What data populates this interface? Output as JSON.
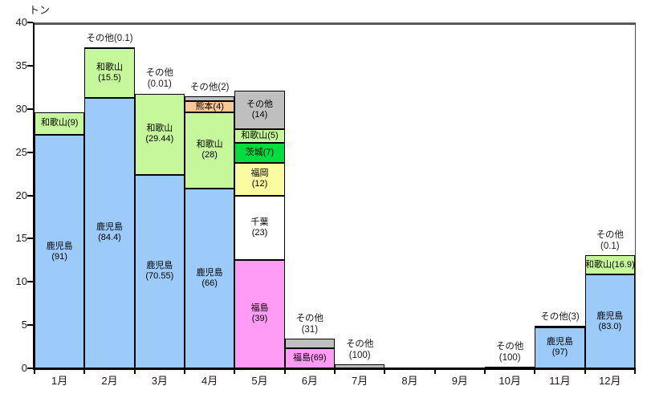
{
  "chart_data": {
    "type": "bar",
    "stacked": true,
    "title": "",
    "xlabel": "",
    "ylabel": "トン",
    "ylim": [
      0,
      40
    ],
    "ytick_step": 5,
    "grid": false,
    "legend": "none (labels drawn inside segments)",
    "categories": [
      "1月",
      "2月",
      "3月",
      "4月",
      "5月",
      "6月",
      "7月",
      "8月",
      "9月",
      "10月",
      "11月",
      "12月"
    ],
    "colors": {
      "kagoshima": "#9CCBFA",
      "wakayama": "#C6F79A",
      "kumamoto": "#FAC896",
      "fukushima": "#FE9BF5",
      "chiba": "#FFFFFF",
      "fukuoka": "#FAFAA0",
      "ibaraki": "#00DD3C",
      "sonota": "#BFBFBF"
    },
    "bars": [
      {
        "category": "1月",
        "total_tons": 29.7,
        "annotation": null,
        "segments": [
          {
            "name": "鹿児島",
            "share_pct": 91,
            "tons": 27.0,
            "color_key": "kagoshima",
            "label_lines": [
              "鹿児島",
              "(91)"
            ]
          },
          {
            "name": "和歌山",
            "share_pct": 9,
            "tons": 2.65,
            "color_key": "wakayama",
            "label_lines": [
              "和歌山(9)"
            ]
          }
        ]
      },
      {
        "category": "2月",
        "total_tons": 37.1,
        "annotation": {
          "lines": [
            "その他(0.1)"
          ]
        },
        "segments": [
          {
            "name": "鹿児島",
            "share_pct": 84.4,
            "tons": 31.3,
            "color_key": "kagoshima",
            "label_lines": [
              "鹿児島",
              "(84.4)"
            ]
          },
          {
            "name": "和歌山",
            "share_pct": 15.5,
            "tons": 5.76,
            "color_key": "wakayama",
            "label_lines": [
              "和歌山",
              "(15.5)"
            ]
          },
          {
            "name": "その他",
            "share_pct": 0.1,
            "tons": 0.04,
            "color_key": "sonota",
            "label_lines": []
          }
        ]
      },
      {
        "category": "3月",
        "total_tons": 31.8,
        "annotation": {
          "lines": [
            "その他",
            "(0.01)"
          ]
        },
        "segments": [
          {
            "name": "鹿児島",
            "share_pct": 70.55,
            "tons": 22.4,
            "color_key": "kagoshima",
            "label_lines": [
              "鹿児島",
              "(70.55)"
            ]
          },
          {
            "name": "和歌山",
            "share_pct": 29.44,
            "tons": 9.35,
            "color_key": "wakayama",
            "label_lines": [
              "和歌山",
              "(29.44)"
            ]
          },
          {
            "name": "その他",
            "share_pct": 0.01,
            "tons": 0,
            "color_key": "sonota",
            "label_lines": []
          }
        ]
      },
      {
        "category": "4月",
        "total_tons": 31.5,
        "annotation": {
          "lines": [
            "その他(2)"
          ]
        },
        "segments": [
          {
            "name": "鹿児島",
            "share_pct": 66,
            "tons": 20.8,
            "color_key": "kagoshima",
            "label_lines": [
              "鹿児島",
              "(66)"
            ]
          },
          {
            "name": "和歌山",
            "share_pct": 28,
            "tons": 8.8,
            "color_key": "wakayama",
            "label_lines": [
              "和歌山",
              "(28)"
            ]
          },
          {
            "name": "熊本",
            "share_pct": 4,
            "tons": 1.26,
            "color_key": "kumamoto",
            "label_lines": [
              "熊本(4)"
            ]
          },
          {
            "name": "その他",
            "share_pct": 2,
            "tons": 0.6,
            "color_key": "sonota",
            "label_lines": []
          }
        ]
      },
      {
        "category": "5月",
        "total_tons": 32.2,
        "annotation": null,
        "segments": [
          {
            "name": "福島",
            "share_pct": 39,
            "tons": 12.55,
            "color_key": "fukushima",
            "label_lines": [
              "福島",
              "(39)"
            ]
          },
          {
            "name": "千葉",
            "share_pct": 23,
            "tons": 7.4,
            "color_key": "chiba",
            "label_lines": [
              "千葉",
              "(23)"
            ]
          },
          {
            "name": "福岡",
            "share_pct": 12,
            "tons": 3.85,
            "color_key": "fukuoka",
            "label_lines": [
              "福岡",
              "(12)"
            ]
          },
          {
            "name": "茨城",
            "share_pct": 7,
            "tons": 2.25,
            "color_key": "ibaraki",
            "label_lines": [
              "茨城(7)"
            ]
          },
          {
            "name": "和歌山",
            "share_pct": 5,
            "tons": 1.6,
            "color_key": "wakayama",
            "label_lines": [
              "和歌山(5)"
            ]
          },
          {
            "name": "その他",
            "share_pct": 14,
            "tons": 4.5,
            "color_key": "sonota",
            "label_lines": [
              "その他",
              "(14)"
            ]
          }
        ]
      },
      {
        "category": "6月",
        "total_tons": 3.4,
        "annotation": {
          "lines": [
            "その他",
            "(31)"
          ]
        },
        "segments": [
          {
            "name": "福島",
            "share_pct": 69,
            "tons": 2.35,
            "color_key": "fukushima",
            "label_lines": [
              "福島(69)"
            ]
          },
          {
            "name": "その他",
            "share_pct": 31,
            "tons": 1.05,
            "color_key": "sonota",
            "label_lines": []
          }
        ]
      },
      {
        "category": "7月",
        "total_tons": 0.45,
        "annotation": {
          "lines": [
            "その他",
            "(100)"
          ]
        },
        "segments": [
          {
            "name": "その他",
            "share_pct": 100,
            "tons": 0.45,
            "color_key": "sonota",
            "label_lines": []
          }
        ]
      },
      {
        "category": "8月",
        "total_tons": 0,
        "annotation": null,
        "segments": []
      },
      {
        "category": "9月",
        "total_tons": 0,
        "annotation": null,
        "segments": []
      },
      {
        "category": "10月",
        "total_tons": 0.15,
        "annotation": {
          "lines": [
            "その他",
            "(100)"
          ]
        },
        "segments": [
          {
            "name": "その他",
            "share_pct": 100,
            "tons": 0.15,
            "color_key": "sonota",
            "label_lines": []
          }
        ]
      },
      {
        "category": "11月",
        "total_tons": 4.9,
        "annotation": {
          "lines": [
            "その他(3)"
          ]
        },
        "segments": [
          {
            "name": "鹿児島",
            "share_pct": 97,
            "tons": 4.75,
            "color_key": "kagoshima",
            "label_lines": [
              "鹿児島",
              "(97)"
            ]
          },
          {
            "name": "その他",
            "share_pct": 3,
            "tons": 0.15,
            "color_key": "sonota",
            "label_lines": []
          }
        ]
      },
      {
        "category": "12月",
        "total_tons": 13.1,
        "annotation": {
          "lines": [
            "その他",
            "(0.1)"
          ]
        },
        "segments": [
          {
            "name": "鹿児島",
            "share_pct": 83.0,
            "tons": 10.85,
            "color_key": "kagoshima",
            "label_lines": [
              "鹿児島",
              "(83.0)"
            ]
          },
          {
            "name": "和歌山",
            "share_pct": 16.9,
            "tons": 2.2,
            "color_key": "wakayama",
            "label_lines": [
              "和歌山(16.9)"
            ]
          },
          {
            "name": "その他",
            "share_pct": 0.1,
            "tons": 0,
            "color_key": "sonota",
            "label_lines": []
          }
        ]
      }
    ],
    "frame_colors": {
      "top_border": "#595959",
      "right_border": "#4d4d4d",
      "axis": "#000000"
    }
  }
}
